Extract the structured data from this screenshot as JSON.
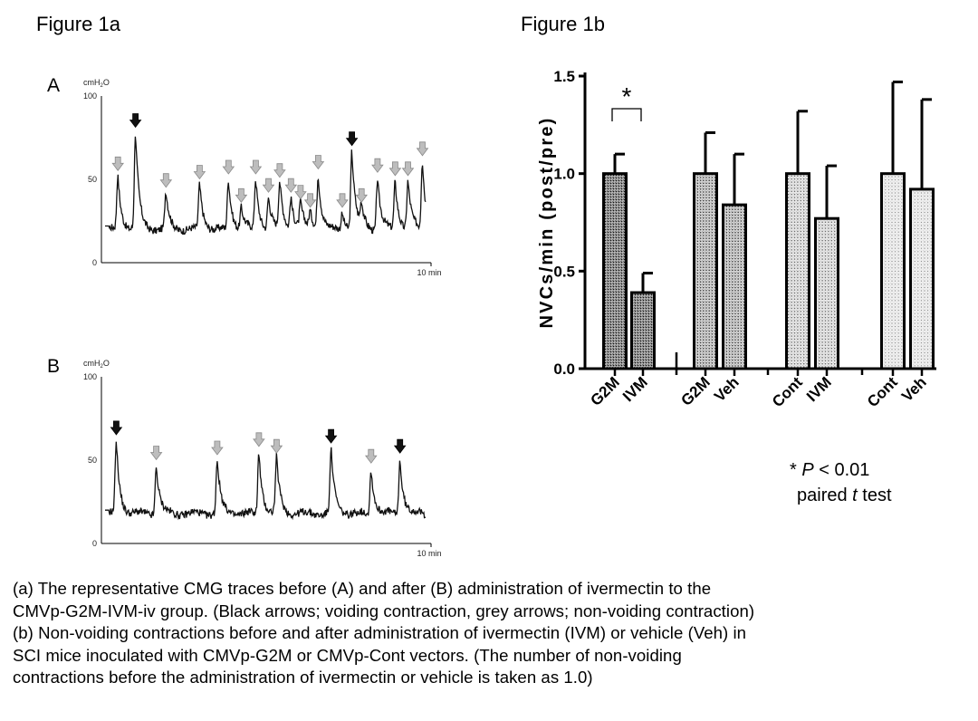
{
  "figure_a": {
    "title": "Figure 1a",
    "panels": [
      {
        "letter": "A",
        "unit": "cmH",
        "unit_sub": "2",
        "unit_tail": "O",
        "y_ticks": [
          "100",
          "50",
          "0"
        ],
        "x_label": "10 min"
      },
      {
        "letter": "B",
        "unit": "cmH",
        "unit_sub": "2",
        "unit_tail": "O",
        "y_ticks": [
          "100",
          "50",
          "0"
        ],
        "x_label": "10 min"
      }
    ]
  },
  "figure_b": {
    "title": "Figure 1b",
    "y_axis_label": "NVCs/min (post/pre)",
    "significance_marker": "*",
    "stats_note": {
      "star": "* ",
      "p": "P",
      "p_rest": " < 0.01",
      "line2_a": "paired ",
      "t": "t",
      "line2_b": " test"
    }
  },
  "caption": [
    "(a) The representative CMG traces before (A) and after (B) administration of ivermectin to the",
    "CMVp-G2M-IVM-iv group. (Black arrows; voiding contraction, grey arrows; non-voiding contraction)",
    "(b) Non-voiding contractions before and after administration of ivermectin (IVM) or vehicle (Veh) in",
    "SCI mice inoculated with CMVp-G2M or CMVp-Cont vectors.  (The number of non-voiding",
    "contractions before the administration of ivermectin or vehicle is taken as 1.0)"
  ],
  "chart_data": [
    {
      "type": "line",
      "panel": "A",
      "y_unit": "cmH2O",
      "ylim": [
        0,
        100
      ],
      "x_range_min": [
        0,
        10
      ],
      "xlabel": "10 min",
      "baseline": 20,
      "peaks": [
        {
          "t": 0.4,
          "v": 52,
          "arrow": "grey"
        },
        {
          "t": 0.95,
          "v": 78,
          "arrow": "black"
        },
        {
          "t": 1.9,
          "v": 42,
          "arrow": "grey"
        },
        {
          "t": 2.95,
          "v": 47,
          "arrow": "grey"
        },
        {
          "t": 3.85,
          "v": 50,
          "arrow": "grey"
        },
        {
          "t": 4.25,
          "v": 33,
          "arrow": "grey"
        },
        {
          "t": 4.7,
          "v": 50,
          "arrow": "grey"
        },
        {
          "t": 5.1,
          "v": 39,
          "arrow": "grey"
        },
        {
          "t": 5.45,
          "v": 48,
          "arrow": "grey"
        },
        {
          "t": 5.8,
          "v": 39,
          "arrow": "grey"
        },
        {
          "t": 6.1,
          "v": 35,
          "arrow": "grey"
        },
        {
          "t": 6.4,
          "v": 30,
          "arrow": "grey"
        },
        {
          "t": 6.65,
          "v": 53,
          "arrow": "grey"
        },
        {
          "t": 7.4,
          "v": 30,
          "arrow": "grey"
        },
        {
          "t": 7.7,
          "v": 67,
          "arrow": "black"
        },
        {
          "t": 8.0,
          "v": 33,
          "arrow": "grey"
        },
        {
          "t": 8.5,
          "v": 51,
          "arrow": "grey"
        },
        {
          "t": 9.05,
          "v": 49,
          "arrow": "grey"
        },
        {
          "t": 9.45,
          "v": 49,
          "arrow": "grey"
        },
        {
          "t": 9.9,
          "v": 61,
          "arrow": "grey"
        }
      ]
    },
    {
      "type": "line",
      "panel": "B",
      "y_unit": "cmH2O",
      "ylim": [
        0,
        100
      ],
      "x_range_min": [
        0,
        10
      ],
      "xlabel": "10 min",
      "baseline": 18,
      "peaks": [
        {
          "t": 0.35,
          "v": 62,
          "arrow": "black"
        },
        {
          "t": 1.6,
          "v": 47,
          "arrow": "grey"
        },
        {
          "t": 3.5,
          "v": 50,
          "arrow": "grey"
        },
        {
          "t": 4.8,
          "v": 55,
          "arrow": "grey"
        },
        {
          "t": 5.35,
          "v": 51,
          "arrow": "grey"
        },
        {
          "t": 7.05,
          "v": 57,
          "arrow": "black"
        },
        {
          "t": 8.3,
          "v": 45,
          "arrow": "grey"
        },
        {
          "t": 9.2,
          "v": 51,
          "arrow": "black"
        }
      ]
    },
    {
      "type": "bar",
      "panel": "Figure 1b",
      "ylabel": "NVCs/min (post/pre)",
      "ylim": [
        0,
        1.5
      ],
      "y_ticks": [
        "0.0",
        "0.5",
        "1.0",
        "1.5"
      ],
      "categories": [
        "G2M",
        "IVM",
        "G2M",
        "Veh",
        "Cont",
        "IVM",
        "Cont",
        "Veh"
      ],
      "values": [
        1.0,
        0.39,
        1.0,
        0.84,
        1.0,
        0.77,
        1.0,
        0.92
      ],
      "errors": [
        0.1,
        0.1,
        0.21,
        0.26,
        0.32,
        0.27,
        0.47,
        0.46
      ],
      "groups": [
        [
          0,
          1
        ],
        [
          2,
          3
        ],
        [
          4,
          5
        ],
        [
          6,
          7
        ]
      ],
      "patterns": [
        "dense",
        "dense",
        "medium",
        "medium",
        "light",
        "light",
        "lighter",
        "lighter"
      ],
      "significance": {
        "between": [
          0,
          1
        ],
        "label": "*"
      },
      "grid": false
    }
  ]
}
